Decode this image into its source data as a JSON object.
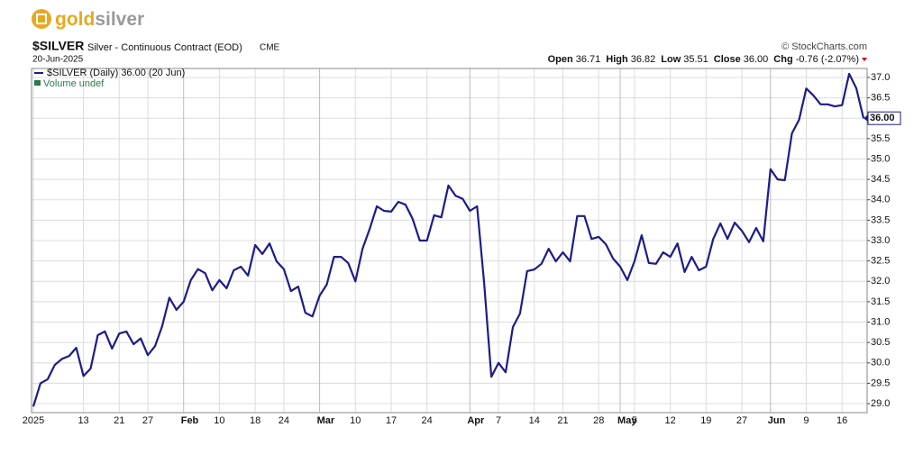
{
  "logo": {
    "part1": "gold",
    "part2": "silver"
  },
  "header": {
    "symbol": "$SILVER",
    "description": "Silver - Continuous Contract (EOD)",
    "exchange": "CME",
    "copyright": "© StockCharts.com",
    "date": "20-Jun-2025",
    "quote": [
      [
        "Open",
        "36.71"
      ],
      [
        "High",
        "36.82"
      ],
      [
        "Low",
        "35.51"
      ],
      [
        "Close",
        "36.00"
      ],
      [
        "Chg",
        "-0.76 (-2.07%)"
      ]
    ],
    "volume": "Volume undef",
    "price_tag": "36.00"
  },
  "chart_data": {
    "type": "line",
    "categories": [
      "2025",
      null,
      null,
      null,
      null,
      null,
      null,
      "13",
      null,
      null,
      null,
      null,
      "21",
      null,
      null,
      null,
      "27",
      null,
      null,
      null,
      null,
      "Feb",
      null,
      null,
      null,
      null,
      "10",
      null,
      null,
      null,
      null,
      "18",
      null,
      null,
      null,
      "24",
      null,
      null,
      null,
      null,
      "Mar",
      null,
      null,
      null,
      null,
      "10",
      null,
      null,
      null,
      null,
      "17",
      null,
      null,
      null,
      null,
      "24",
      null,
      null,
      null,
      null,
      null,
      "Apr",
      null,
      null,
      null,
      "7",
      null,
      null,
      null,
      null,
      "14",
      null,
      null,
      null,
      "21",
      null,
      null,
      null,
      null,
      "28",
      null,
      null,
      "May",
      null,
      "5",
      null,
      null,
      null,
      null,
      "12",
      null,
      null,
      null,
      null,
      "19",
      null,
      null,
      null,
      null,
      "27",
      null,
      null,
      null,
      "Jun",
      null,
      null,
      null,
      null,
      "9",
      null,
      null,
      null,
      null,
      "16",
      null,
      null,
      null
    ],
    "series": [
      {
        "name": "$SILVER (Daily) 36.00 (20 Jun)",
        "color": "#1c1c8a",
        "values": [
          28.93,
          29.5,
          29.6,
          29.95,
          30.1,
          30.17,
          30.37,
          29.68,
          29.86,
          30.68,
          30.77,
          30.35,
          30.72,
          30.77,
          30.46,
          30.6,
          30.19,
          30.41,
          30.9,
          31.6,
          31.3,
          31.5,
          32.03,
          32.3,
          32.2,
          31.78,
          32.03,
          31.83,
          32.27,
          32.36,
          32.14,
          32.89,
          32.67,
          32.93,
          32.49,
          32.3,
          31.76,
          31.87,
          31.23,
          31.14,
          31.65,
          31.92,
          32.6,
          32.6,
          32.45,
          32.0,
          32.8,
          33.29,
          33.84,
          33.73,
          33.71,
          33.95,
          33.88,
          33.53,
          33.0,
          33.0,
          33.62,
          33.57,
          34.35,
          34.1,
          34.02,
          33.73,
          33.84,
          31.94,
          29.66,
          30.0,
          29.77,
          30.88,
          31.21,
          32.25,
          32.29,
          32.43,
          32.8,
          32.49,
          32.71,
          32.49,
          33.6,
          33.6,
          33.04,
          33.09,
          32.91,
          32.56,
          32.36,
          32.03,
          32.49,
          33.13,
          32.45,
          32.43,
          32.71,
          32.6,
          32.93,
          32.23,
          32.6,
          32.27,
          32.36,
          33.04,
          33.42,
          33.04,
          33.44,
          33.24,
          32.96,
          33.31,
          32.98,
          34.75,
          34.5,
          34.48,
          35.63,
          35.96,
          36.73,
          36.56,
          36.34,
          36.34,
          36.29,
          36.32,
          37.09,
          36.73,
          36.0
        ]
      }
    ],
    "ylim": [
      28.78,
      37.22
    ],
    "yticks": [
      {
        "value": 29,
        "label": "29.0"
      },
      {
        "value": 29.5,
        "label": "29.5"
      },
      {
        "value": 30,
        "label": "30.0"
      },
      {
        "value": 30.5,
        "label": "30.5"
      },
      {
        "value": 31,
        "label": "31.0"
      },
      {
        "value": 31.5,
        "label": "31.5"
      },
      {
        "value": 32,
        "label": "32.0"
      },
      {
        "value": 32.5,
        "label": "32.5"
      },
      {
        "value": 33,
        "label": "33.0"
      },
      {
        "value": 33.5,
        "label": "33.5"
      },
      {
        "value": 34,
        "label": "34.0"
      },
      {
        "value": 34.5,
        "label": "34.5"
      },
      {
        "value": 35,
        "label": "35.0"
      },
      {
        "value": 35.5,
        "label": "35.5"
      },
      {
        "value": 36,
        "label": "36.0"
      },
      {
        "value": 36.5,
        "label": "36.5"
      },
      {
        "value": 37,
        "label": "37.0"
      }
    ],
    "grid": true
  }
}
